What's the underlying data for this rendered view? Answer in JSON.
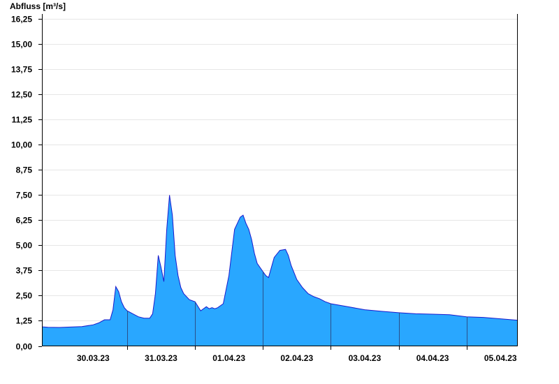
{
  "chart_data": {
    "type": "area",
    "title": "",
    "ylabel": "Abfluss [m³/s]",
    "xlabel": "",
    "ylim": [
      0,
      16.5
    ],
    "yticks": [
      {
        "value": 0,
        "label": "0,00"
      },
      {
        "value": 1.25,
        "label": "1,25"
      },
      {
        "value": 2.5,
        "label": "2,50"
      },
      {
        "value": 3.75,
        "label": "3,75"
      },
      {
        "value": 5.0,
        "label": "5,00"
      },
      {
        "value": 6.25,
        "label": "6,25"
      },
      {
        "value": 7.5,
        "label": "7,50"
      },
      {
        "value": 8.75,
        "label": "8,75"
      },
      {
        "value": 10.0,
        "label": "10,00"
      },
      {
        "value": 11.25,
        "label": "11,25"
      },
      {
        "value": 12.5,
        "label": "12,50"
      },
      {
        "value": 13.75,
        "label": "13,75"
      },
      {
        "value": 15.0,
        "label": "15,00"
      },
      {
        "value": 16.25,
        "label": "16,25"
      }
    ],
    "xlim": [
      "2023-03-29T18:00",
      "2023-04-05T18:00"
    ],
    "xticks": [
      {
        "value": "2023-03-30T12:00",
        "label": "30.03.23"
      },
      {
        "value": "2023-03-31T12:00",
        "label": "31.03.23"
      },
      {
        "value": "2023-04-01T12:00",
        "label": "01.04.23"
      },
      {
        "value": "2023-04-02T12:00",
        "label": "02.04.23"
      },
      {
        "value": "2023-04-03T12:00",
        "label": "03.04.23"
      },
      {
        "value": "2023-04-04T12:00",
        "label": "04.04.23"
      },
      {
        "value": "2023-04-05T12:00",
        "label": "05.04.23"
      }
    ],
    "day_boundaries": [
      "2023-03-31T00:00",
      "2023-04-01T00:00",
      "2023-04-02T00:00",
      "2023-04-03T00:00",
      "2023-04-04T00:00",
      "2023-04-05T00:00"
    ],
    "grid": true,
    "fill_color": "#29a7ff",
    "line_color": "#1a1acc",
    "series": [
      {
        "x": [
          "2023-03-29T18:00",
          "2023-03-29T20:00",
          "2023-03-30T00:00",
          "2023-03-30T04:00",
          "2023-03-30T08:00",
          "2023-03-30T12:00",
          "2023-03-30T14:00",
          "2023-03-30T16:00",
          "2023-03-30T18:00",
          "2023-03-30T19:00",
          "2023-03-30T20:00",
          "2023-03-30T21:00",
          "2023-03-30T22:00",
          "2023-03-30T23:00",
          "2023-03-31T00:00",
          "2023-03-31T02:00",
          "2023-03-31T04:00",
          "2023-03-31T06:00",
          "2023-03-31T08:00",
          "2023-03-31T09:00",
          "2023-03-31T10:00",
          "2023-03-31T11:00",
          "2023-03-31T12:00",
          "2023-03-31T13:00",
          "2023-03-31T14:00",
          "2023-03-31T15:00",
          "2023-03-31T16:00",
          "2023-03-31T17:00",
          "2023-03-31T18:00",
          "2023-03-31T19:00",
          "2023-03-31T20:00",
          "2023-03-31T22:00",
          "2023-04-01T00:00",
          "2023-04-01T02:00",
          "2023-04-01T04:00",
          "2023-04-01T05:00",
          "2023-04-01T06:00",
          "2023-04-01T07:00",
          "2023-04-01T08:00",
          "2023-04-01T10:00",
          "2023-04-01T12:00",
          "2023-04-01T14:00",
          "2023-04-01T16:00",
          "2023-04-01T17:00",
          "2023-04-01T18:00",
          "2023-04-01T19:00",
          "2023-04-01T20:00",
          "2023-04-01T21:00",
          "2023-04-01T22:00",
          "2023-04-02T00:00",
          "2023-04-02T01:00",
          "2023-04-02T02:00",
          "2023-04-02T04:00",
          "2023-04-02T06:00",
          "2023-04-02T08:00",
          "2023-04-02T09:00",
          "2023-04-02T10:00",
          "2023-04-02T12:00",
          "2023-04-02T14:00",
          "2023-04-02T16:00",
          "2023-04-02T18:00",
          "2023-04-02T20:00",
          "2023-04-02T22:00",
          "2023-04-03T00:00",
          "2023-04-03T06:00",
          "2023-04-03T12:00",
          "2023-04-03T18:00",
          "2023-04-04T00:00",
          "2023-04-04T06:00",
          "2023-04-04T12:00",
          "2023-04-04T18:00",
          "2023-04-05T00:00",
          "2023-04-05T06:00",
          "2023-04-05T12:00",
          "2023-04-05T18:00"
        ],
        "values": [
          0.95,
          0.93,
          0.92,
          0.94,
          0.96,
          1.05,
          1.15,
          1.3,
          1.3,
          1.8,
          2.95,
          2.7,
          2.2,
          1.9,
          1.75,
          1.6,
          1.45,
          1.38,
          1.38,
          1.6,
          2.6,
          4.5,
          3.9,
          3.2,
          5.8,
          7.5,
          6.5,
          4.5,
          3.5,
          2.9,
          2.6,
          2.3,
          2.2,
          1.75,
          1.95,
          1.85,
          1.9,
          1.85,
          1.9,
          2.1,
          3.5,
          5.8,
          6.4,
          6.5,
          6.1,
          5.8,
          5.3,
          4.6,
          4.1,
          3.7,
          3.5,
          3.4,
          4.4,
          4.75,
          4.8,
          4.5,
          4.0,
          3.3,
          2.9,
          2.6,
          2.45,
          2.35,
          2.2,
          2.1,
          1.95,
          1.8,
          1.72,
          1.65,
          1.6,
          1.58,
          1.55,
          1.45,
          1.42,
          1.35,
          1.28
        ]
      }
    ]
  }
}
